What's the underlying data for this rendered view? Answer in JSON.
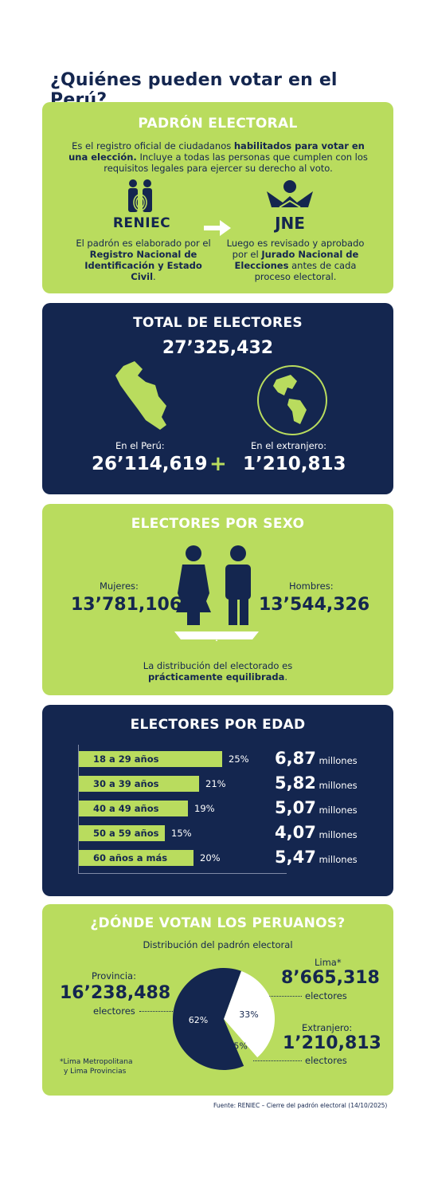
{
  "title": "¿Quiénes pueden votar en el Perú?",
  "padron": {
    "heading": "PADRÓN ELECTORAL",
    "desc_1": "Es el registro oficial de ciudadanos ",
    "desc_bold": "habilitados para votar en una elección.",
    "desc_2": " Incluye a todas las personas que cumplen con los requisitos legales para ejercer su derecho al voto.",
    "reniec_logo": "RENIEC",
    "jne_logo": "JNE",
    "reniec_text_1": "El padrón es elaborado por el ",
    "reniec_text_bold": "Registro Nacional de Identificación y Estado Civil",
    "reniec_text_2": ".",
    "jne_text_1": "Luego es revisado y aprobado por el ",
    "jne_text_bold": "Jurado Nacional de Elecciones",
    "jne_text_2": " antes de cada proceso electoral.",
    "arrow_icon": "right-arrow-icon"
  },
  "total": {
    "heading": "TOTAL DE ELECTORES",
    "value": "27’325,432",
    "peru_label": "En el Perú:",
    "peru_value": "26’114,619",
    "plus": "+",
    "abroad_label": "En el extranjero:",
    "abroad_value": "1’210,813"
  },
  "sexo": {
    "heading": "ELECTORES POR SEXO",
    "women_label": "Mujeres:",
    "women_value": "13’781,106",
    "men_label": "Hombres:",
    "men_value": "13’544,326",
    "note_1": "La distribución del electorado es",
    "note_bold": "prácticamente equilibrada",
    "note_2": "."
  },
  "edad": {
    "heading": "ELECTORES POR EDAD",
    "rows": [
      {
        "label": "18 a 29 años",
        "pct": "25%",
        "value": "6,87",
        "unit": "millones"
      },
      {
        "label": "30 a 39 años",
        "pct": "21%",
        "value": "5,82",
        "unit": "millones"
      },
      {
        "label": "40 a 49 años",
        "pct": "19%",
        "value": "5,07",
        "unit": "millones"
      },
      {
        "label": "50 a 59 años",
        "pct": "15%",
        "value": "4,07",
        "unit": "millones"
      },
      {
        "label": "60 años a más",
        "pct": "20%",
        "value": "5,47",
        "unit": "millones"
      }
    ]
  },
  "donde": {
    "heading": "¿DÓNDE VOTAN LOS PERUANOS?",
    "subtitle": "Distribución del padrón electoral",
    "provincia_label": "Provincia:",
    "provincia_value": "16’238,488",
    "provincia_unit": "electores",
    "lima_label": "Lima*",
    "lima_value": "8’665,318",
    "lima_unit": "electores",
    "ext_label": "Extranjero:",
    "ext_value": "1’210,813",
    "ext_unit": "electores",
    "pie_pct_provincia": "62%",
    "pie_pct_lima": "33%",
    "pie_pct_ext": "5%",
    "footnote_1": "*Lima Metropolitana",
    "footnote_2": "y Lima Provincias",
    "colors": {
      "provincia": "#14264f",
      "lima": "#ffffff",
      "extranjero": "#b9dc5e"
    }
  },
  "source": "Fuente: RENIEC – Cierre del padrón electoral (14/10/2025)",
  "colors": {
    "navy": "#14264f",
    "green": "#b9dc5e"
  }
}
